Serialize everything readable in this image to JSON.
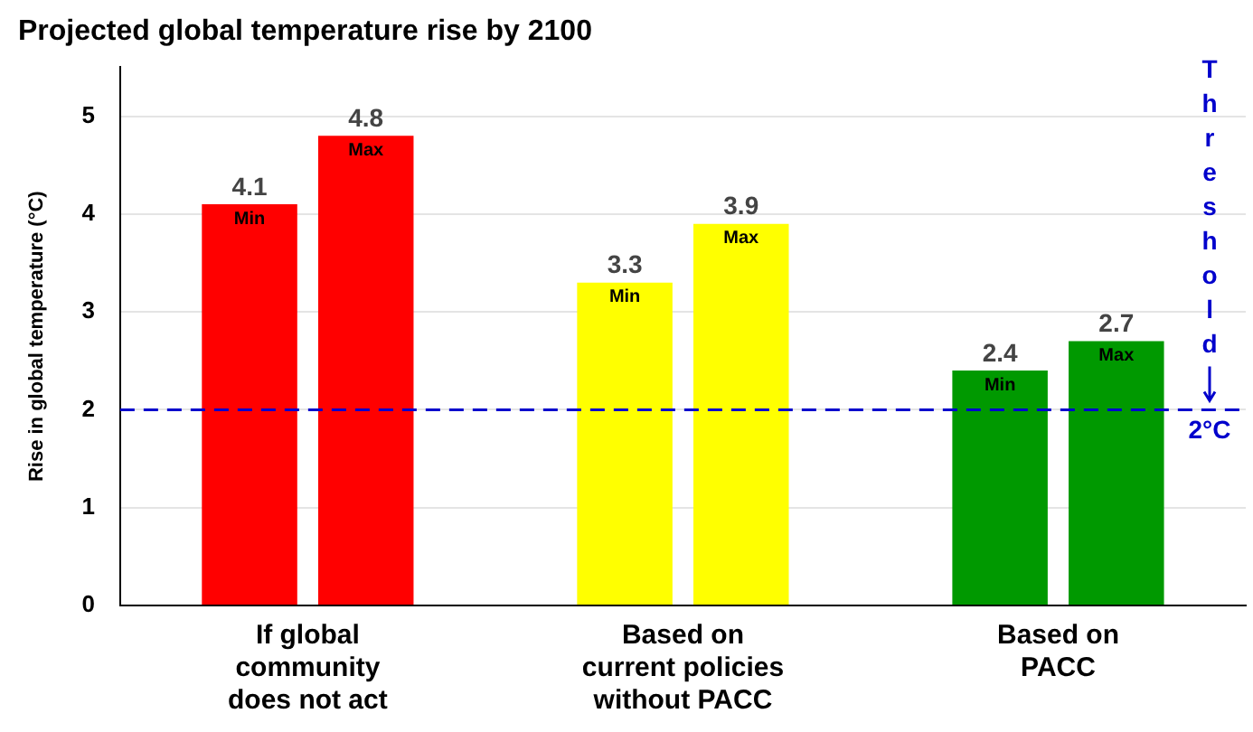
{
  "chart_data": {
    "type": "bar",
    "title": "Projected global temperature rise by 2100",
    "ylabel": "Rise in global temperature (°C)",
    "categories": [
      "If global\ncommunity\ndoes not act",
      "Based on\ncurrent policies\nwithout PACC",
      "Based on\nPACC"
    ],
    "series": [
      {
        "name": "Min",
        "colors": [
          "#ff0000",
          "#ffff00",
          "#009900"
        ],
        "values": [
          4.1,
          3.3,
          2.4
        ]
      },
      {
        "name": "Max",
        "colors": [
          "#ff0000",
          "#ffff00",
          "#009900"
        ],
        "values": [
          4.8,
          3.9,
          2.7
        ]
      }
    ],
    "ylim": [
      0,
      5.5
    ],
    "yticks": [
      0,
      1,
      2,
      3,
      4,
      5
    ],
    "grid": "y",
    "legend": false,
    "data_labels": true,
    "ref_lines": [
      {
        "axis": "y",
        "value": 2,
        "label": "Threshold 2°C",
        "color": "#0000cc",
        "line_style": "dashed"
      }
    ]
  }
}
